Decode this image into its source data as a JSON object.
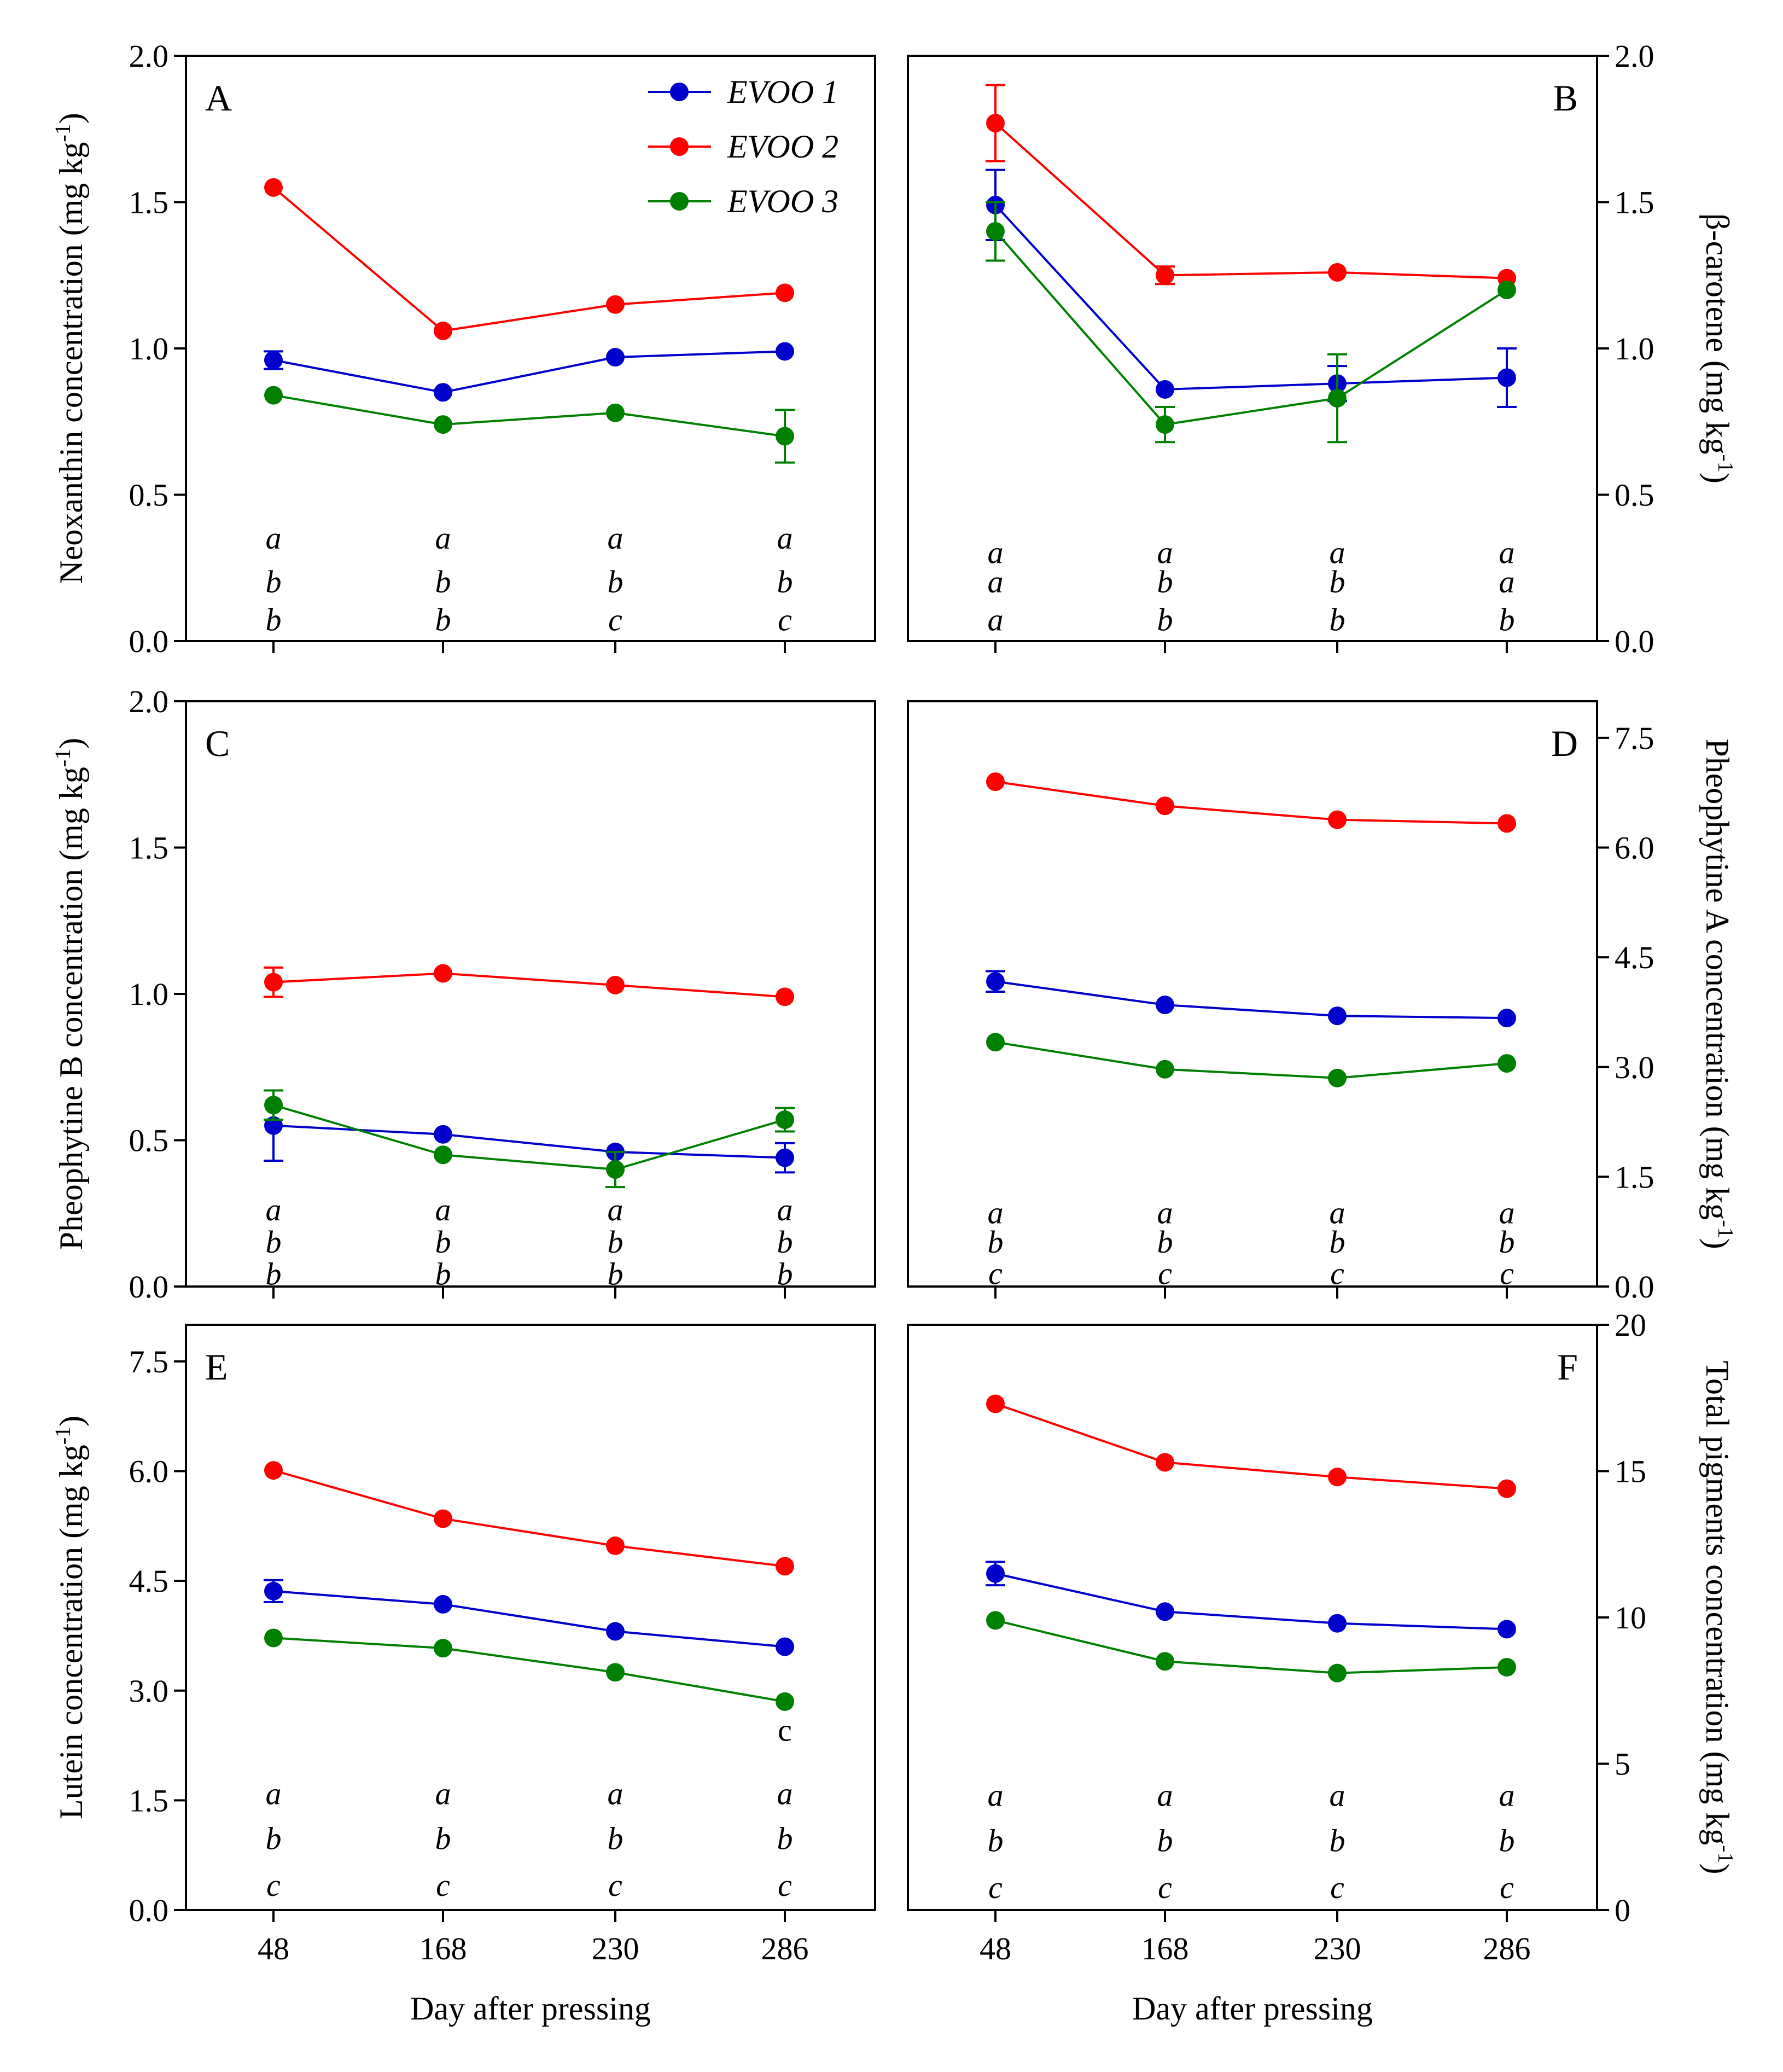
{
  "colors": {
    "EVOO 1": "#0000cc",
    "EVOO 2": "#ff0000",
    "EVOO 3": "#008000"
  },
  "legend": [
    "EVOO 1",
    "EVOO 2",
    "EVOO 3"
  ],
  "xlabel": "Day after pressing",
  "chart_data": [
    {
      "type": "line",
      "panel": "A",
      "ylabel": "Neoxanthin concentration (mg kg",
      "ylabel_sup": "-1",
      "ylabel_close": ")",
      "ylim": [
        0,
        2.0
      ],
      "yticks": [
        "0.0",
        "0.5",
        "1.0",
        "1.5",
        "2.0"
      ],
      "x": [
        "48",
        "168",
        "230",
        "286"
      ],
      "series": [
        {
          "name": "EVOO 1",
          "values": [
            0.96,
            0.85,
            0.97,
            0.99
          ],
          "err": [
            0.03,
            0.01,
            0.01,
            0.01
          ]
        },
        {
          "name": "EVOO 2",
          "values": [
            1.55,
            1.06,
            1.15,
            1.19
          ],
          "err": [
            0.01,
            0.01,
            0.01,
            0.01
          ]
        },
        {
          "name": "EVOO 3",
          "values": [
            0.84,
            0.74,
            0.78,
            0.7
          ],
          "err": [
            0.01,
            0.01,
            0.01,
            0.09
          ]
        }
      ],
      "letters": [
        [
          "a",
          "b",
          "b"
        ],
        [
          "a",
          "b",
          "b"
        ],
        [
          "a",
          "b",
          "c"
        ],
        [
          "a",
          "b",
          "c"
        ]
      ],
      "letters_y": [
        0.35,
        0.2,
        0.07
      ]
    },
    {
      "type": "line",
      "panel": "B",
      "ylabel": "β-carotene (mg kg",
      "ylabel_sup": "-1",
      "ylabel_close": ")",
      "ylim": [
        0,
        2.0
      ],
      "yticks": [
        "0.0",
        "0.5",
        "1.0",
        "1.5",
        "2.0"
      ],
      "x": [
        "48",
        "168",
        "230",
        "286"
      ],
      "series": [
        {
          "name": "EVOO 1",
          "values": [
            1.49,
            0.86,
            0.88,
            0.9
          ],
          "err": [
            0.12,
            0.01,
            0.06,
            0.1
          ]
        },
        {
          "name": "EVOO 2",
          "values": [
            1.77,
            1.25,
            1.26,
            1.24
          ],
          "err": [
            0.13,
            0.03,
            0.01,
            0.02
          ]
        },
        {
          "name": "EVOO 3",
          "values": [
            1.4,
            0.74,
            0.83,
            1.2
          ],
          "err": [
            0.1,
            0.06,
            0.15,
            0.01
          ]
        }
      ],
      "letters": [
        [
          "a",
          "a",
          "a"
        ],
        [
          "a",
          "b",
          "b"
        ],
        [
          "a",
          "b",
          "b"
        ],
        [
          "a",
          "a",
          "b"
        ]
      ],
      "letters_y": [
        0.3,
        0.2,
        0.07
      ]
    },
    {
      "type": "line",
      "panel": "C",
      "ylabel": "Pheophytine B concentration (mg kg",
      "ylabel_sup": "-1",
      "ylabel_close": ")",
      "ylim": [
        0,
        2.0
      ],
      "yticks": [
        "0.0",
        "0.5",
        "1.0",
        "1.5",
        "2.0"
      ],
      "x": [
        "48",
        "168",
        "230",
        "286"
      ],
      "series": [
        {
          "name": "EVOO 1",
          "values": [
            0.55,
            0.52,
            0.46,
            0.44
          ],
          "err": [
            0.12,
            0.01,
            0.01,
            0.05
          ]
        },
        {
          "name": "EVOO 2",
          "values": [
            1.04,
            1.07,
            1.03,
            0.99
          ],
          "err": [
            0.05,
            0.01,
            0.01,
            0.01
          ]
        },
        {
          "name": "EVOO 3",
          "values": [
            0.62,
            0.45,
            0.4,
            0.57
          ],
          "err": [
            0.05,
            0.01,
            0.06,
            0.04
          ]
        }
      ],
      "letters": [
        [
          "a",
          "b",
          "b"
        ],
        [
          "a",
          "b",
          "b"
        ],
        [
          "a",
          "b",
          "b"
        ],
        [
          "a",
          "b",
          "b"
        ]
      ],
      "letters_y": [
        0.26,
        0.15,
        0.04
      ]
    },
    {
      "type": "line",
      "panel": "D",
      "ylabel": "Pheophytine A concentration (mg kg",
      "ylabel_sup": "-1",
      "ylabel_close": ")",
      "ylim": [
        0,
        8.0
      ],
      "yticks": [
        "0.0",
        "1.5",
        "3.0",
        "4.5",
        "6.0",
        "7.5"
      ],
      "x": [
        "48",
        "168",
        "230",
        "286"
      ],
      "series": [
        {
          "name": "EVOO 1",
          "values": [
            4.17,
            3.85,
            3.7,
            3.67
          ],
          "err": [
            0.14,
            0.03,
            0.03,
            0.03
          ]
        },
        {
          "name": "EVOO 2",
          "values": [
            6.9,
            6.57,
            6.38,
            6.33
          ],
          "err": [
            0.03,
            0.03,
            0.03,
            0.03
          ]
        },
        {
          "name": "EVOO 3",
          "values": [
            3.34,
            2.97,
            2.85,
            3.05
          ],
          "err": [
            0.03,
            0.03,
            0.03,
            0.03
          ]
        }
      ],
      "letters": [
        [
          "a",
          "b",
          "c"
        ],
        [
          "a",
          "b",
          "c"
        ],
        [
          "a",
          "b",
          "c"
        ],
        [
          "a",
          "b",
          "c"
        ]
      ],
      "letters_y": [
        1.0,
        0.6,
        0.17
      ]
    },
    {
      "type": "line",
      "panel": "E",
      "ylabel": "Lutein concentration (mg kg",
      "ylabel_sup": "-1",
      "ylabel_close": ")",
      "ylim": [
        0,
        8.0
      ],
      "yticks": [
        "0.0",
        "1.5",
        "3.0",
        "4.5",
        "6.0",
        "7.5"
      ],
      "x": [
        "48",
        "168",
        "230",
        "286"
      ],
      "series": [
        {
          "name": "EVOO 1",
          "values": [
            4.36,
            4.18,
            3.81,
            3.6
          ],
          "err": [
            0.15,
            0.03,
            0.03,
            0.03
          ]
        },
        {
          "name": "EVOO 2",
          "values": [
            6.01,
            5.35,
            4.98,
            4.7
          ],
          "err": [
            0.03,
            0.03,
            0.03,
            0.03
          ]
        },
        {
          "name": "EVOO 3",
          "values": [
            3.72,
            3.58,
            3.25,
            2.85
          ],
          "err": [
            0.03,
            0.03,
            0.03,
            0.03
          ]
        }
      ],
      "letters": [
        [
          "a",
          "b",
          "c"
        ],
        [
          "a",
          "b",
          "c"
        ],
        [
          "a",
          "b",
          "c"
        ],
        [
          "a",
          "b",
          "c"
        ]
      ],
      "letters_y": [
        1.58,
        0.97,
        0.33
      ],
      "annotation": "c"
    },
    {
      "type": "line",
      "panel": "F",
      "ylabel": "Total pigments concentration (mg kg",
      "ylabel_sup": "-1",
      "ylabel_close": ")",
      "ylim": [
        0,
        20
      ],
      "yticks": [
        "0",
        "5",
        "10",
        "15",
        "20"
      ],
      "x": [
        "48",
        "168",
        "230",
        "286"
      ],
      "series": [
        {
          "name": "EVOO 1",
          "values": [
            11.5,
            10.2,
            9.8,
            9.6
          ],
          "err": [
            0.4,
            0.05,
            0.05,
            0.05
          ]
        },
        {
          "name": "EVOO 2",
          "values": [
            17.3,
            15.3,
            14.8,
            14.4
          ],
          "err": [
            0.05,
            0.05,
            0.05,
            0.05
          ]
        },
        {
          "name": "EVOO 3",
          "values": [
            9.9,
            8.5,
            8.1,
            8.3
          ],
          "err": [
            0.05,
            0.05,
            0.05,
            0.05
          ]
        }
      ],
      "letters": [
        [
          "a",
          "b",
          "c"
        ],
        [
          "a",
          "b",
          "c"
        ],
        [
          "a",
          "b",
          "c"
        ],
        [
          "a",
          "b",
          "c"
        ]
      ],
      "letters_y": [
        3.9,
        2.35,
        0.75
      ]
    }
  ]
}
